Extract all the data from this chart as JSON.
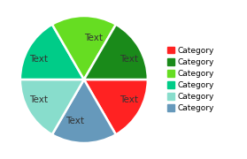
{
  "categories": [
    "Category",
    "Category",
    "Category",
    "Category",
    "Category",
    "Category"
  ],
  "values": [
    16.67,
    16.67,
    16.67,
    16.67,
    16.67,
    16.65
  ],
  "colors": [
    "#ff2222",
    "#1a8a1a",
    "#66dd22",
    "#00cc88",
    "#88ddcc",
    "#6699bb"
  ],
  "labels": [
    "Text",
    "Text",
    "Text",
    "Text",
    "Text",
    "Text"
  ],
  "legend_colors": [
    "#ff2222",
    "#1a8a1a",
    "#66dd22",
    "#00cc88",
    "#88ddcc",
    "#6699bb"
  ],
  "legend_labels": [
    "Category",
    "Category",
    "Category",
    "Category",
    "Category",
    "Category"
  ],
  "startangle": 0,
  "background_color": "#ffffff",
  "label_fontsize": 7.5,
  "legend_fontsize": 6.5
}
